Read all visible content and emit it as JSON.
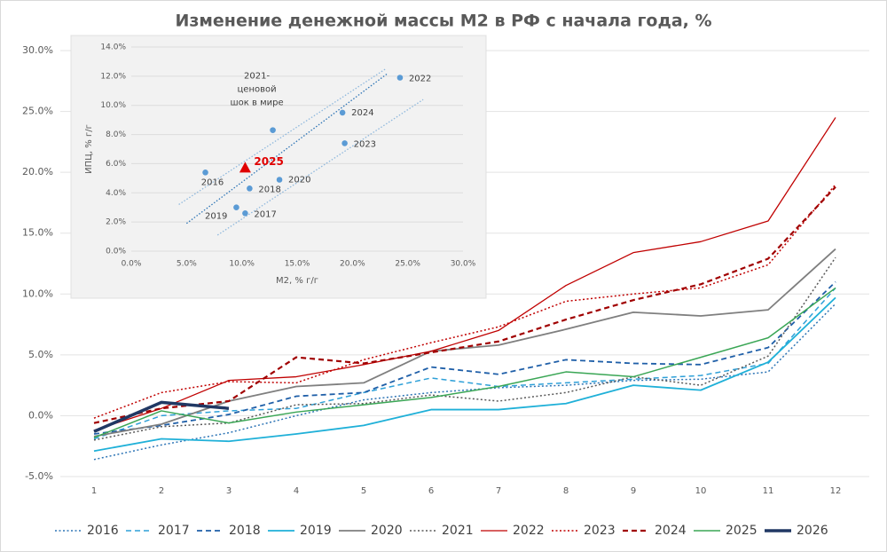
{
  "chart_data": [
    {
      "type": "line",
      "title": "Изменение денежной массы М2 в РФ с начала года, %",
      "categories": [
        "1",
        "2",
        "3",
        "4",
        "5",
        "6",
        "7",
        "8",
        "9",
        "10",
        "11",
        "12"
      ],
      "ylim": [
        -5,
        30
      ],
      "yticks": [
        {
          "value": -5,
          "label": "-5.0%"
        },
        {
          "value": 0,
          "label": "0.0%"
        },
        {
          "value": 5,
          "label": "5.0%"
        },
        {
          "value": 10,
          "label": "10.0%"
        },
        {
          "value": 15,
          "label": "15.0%"
        },
        {
          "value": 20,
          "label": "20.0%"
        },
        {
          "value": 25,
          "label": "25.0%"
        },
        {
          "value": 30,
          "label": "30.0%"
        }
      ],
      "grid": true,
      "legend": "bottom",
      "series": [
        {
          "name": "2016",
          "color": "#2e75b6",
          "dash": "dotted",
          "width": 1.5,
          "values": [
            -3.6,
            -2.4,
            -1.4,
            0.0,
            1.3,
            1.9,
            2.3,
            2.5,
            2.9,
            3.0,
            3.6,
            9.2
          ]
        },
        {
          "name": "2017",
          "color": "#2ea0d8",
          "dash": "dashed",
          "width": 1.5,
          "values": [
            -1.9,
            0.0,
            0.4,
            0.6,
            1.9,
            3.1,
            2.4,
            2.7,
            3.0,
            3.3,
            4.3,
            10.5
          ]
        },
        {
          "name": "2018",
          "color": "#1f5fa8",
          "dash": "dashed",
          "width": 1.8,
          "values": [
            -1.5,
            -0.8,
            0.1,
            1.6,
            1.9,
            4.0,
            3.4,
            4.6,
            4.3,
            4.2,
            5.6,
            11.0
          ]
        },
        {
          "name": "2019",
          "color": "#1fb0d8",
          "dash": "solid",
          "width": 1.8,
          "values": [
            -2.9,
            -1.9,
            -2.1,
            -1.5,
            -0.8,
            0.5,
            0.5,
            1.0,
            2.5,
            2.1,
            4.4,
            9.7
          ]
        },
        {
          "name": "2020",
          "color": "#7f7f7f",
          "dash": "solid",
          "width": 1.8,
          "values": [
            -1.7,
            -0.7,
            1.2,
            2.4,
            2.7,
            5.3,
            5.8,
            7.1,
            8.5,
            8.2,
            8.7,
            13.7
          ]
        },
        {
          "name": "2021",
          "color": "#595959",
          "dash": "dotted",
          "width": 1.5,
          "values": [
            -2.0,
            -0.9,
            -0.6,
            0.9,
            1.0,
            1.7,
            1.2,
            1.9,
            3.2,
            2.5,
            4.9,
            13.0
          ]
        },
        {
          "name": "2022",
          "color": "#c00000",
          "dash": "solid",
          "width": 1.3,
          "values": [
            -1.2,
            0.6,
            2.9,
            3.2,
            4.2,
            5.3,
            7.0,
            10.7,
            13.4,
            14.3,
            16.0,
            24.5
          ]
        },
        {
          "name": "2023",
          "color": "#c00000",
          "dash": "dotted",
          "width": 1.5,
          "values": [
            -0.2,
            1.9,
            2.8,
            2.7,
            4.6,
            6.0,
            7.3,
            9.4,
            10.0,
            10.5,
            12.4,
            19.0
          ]
        },
        {
          "name": "2024",
          "color": "#a00000",
          "dash": "dashed",
          "width": 2.2,
          "values": [
            -0.6,
            0.6,
            1.2,
            4.8,
            4.3,
            5.2,
            6.1,
            7.9,
            9.5,
            10.8,
            12.9,
            18.8
          ]
        },
        {
          "name": "2025",
          "color": "#3aa655",
          "dash": "solid",
          "width": 1.5,
          "values": [
            -1.8,
            0.4,
            -0.6,
            0.3,
            0.9,
            1.5,
            2.4,
            3.6,
            3.2,
            4.8,
            6.4,
            10.5
          ]
        },
        {
          "name": "2026",
          "color": "#203864",
          "dash": "solid",
          "width": 3.5,
          "values": [
            -1.3,
            1.1,
            0.6,
            null,
            null,
            null,
            null,
            null,
            null,
            null,
            null,
            null
          ]
        }
      ]
    },
    {
      "type": "scatter",
      "xlabel": "М2, % г/г",
      "ylabel": "ИПЦ, % г/г",
      "xlim": [
        0,
        30
      ],
      "xticks": [
        {
          "value": 0,
          "label": "0.0%"
        },
        {
          "value": 5,
          "label": "5.0%"
        },
        {
          "value": 10,
          "label": "10.0%"
        },
        {
          "value": 15,
          "label": "15.0%"
        },
        {
          "value": 20,
          "label": "20.0%"
        },
        {
          "value": 25,
          "label": "25.0%"
        },
        {
          "value": 30,
          "label": "30.0%"
        }
      ],
      "ylim": [
        0,
        14
      ],
      "yticks": [
        {
          "value": 0,
          "label": "0.0%"
        },
        {
          "value": 2,
          "label": "2.0%"
        },
        {
          "value": 4,
          "label": "4.0%"
        },
        {
          "value": 6,
          "label": "6.0%"
        },
        {
          "value": 8,
          "label": "8.0%"
        },
        {
          "value": 10,
          "label": "10.0%"
        },
        {
          "value": 12,
          "label": "12.0%"
        },
        {
          "value": 14,
          "label": "14.0%"
        }
      ],
      "grid": true,
      "points": [
        {
          "label": "2022",
          "x": 24.3,
          "y": 11.9,
          "color": "#5b9bd5",
          "marker": "circle"
        },
        {
          "label": "2024",
          "x": 19.1,
          "y": 9.5,
          "color": "#5b9bd5",
          "marker": "circle"
        },
        {
          "label": "2023",
          "x": 19.3,
          "y": 7.4,
          "color": "#5b9bd5",
          "marker": "circle"
        },
        {
          "label": [
            "2021-",
            "ценовой",
            "шок в мире"
          ],
          "x": 12.8,
          "y": 8.3,
          "color": "#5b9bd5",
          "marker": "circle"
        },
        {
          "label": "2016",
          "x": 6.7,
          "y": 5.4,
          "color": "#5b9bd5",
          "marker": "circle"
        },
        {
          "label": "2025",
          "x": 10.3,
          "y": 5.7,
          "color": "#e00000",
          "marker": "triangle"
        },
        {
          "label": "2018",
          "x": 10.7,
          "y": 4.3,
          "color": "#5b9bd5",
          "marker": "circle"
        },
        {
          "label": "2020",
          "x": 13.4,
          "y": 4.9,
          "color": "#5b9bd5",
          "marker": "circle"
        },
        {
          "label": "2019",
          "x": 9.5,
          "y": 3.0,
          "color": "#5b9bd5",
          "marker": "circle"
        },
        {
          "label": "2017",
          "x": 10.3,
          "y": 2.6,
          "color": "#5b9bd5",
          "marker": "circle"
        }
      ],
      "trend_lines": [
        {
          "x": [
            5.0,
            23.2
          ],
          "y": [
            1.9,
            12.2
          ],
          "color": "#2e75b6"
        },
        {
          "x": [
            4.3,
            23.0
          ],
          "y": [
            3.2,
            12.5
          ],
          "color": "#8fb8dd"
        },
        {
          "x": [
            7.8,
            26.4
          ],
          "y": [
            1.1,
            10.4
          ],
          "color": "#8fb8dd"
        }
      ]
    }
  ]
}
